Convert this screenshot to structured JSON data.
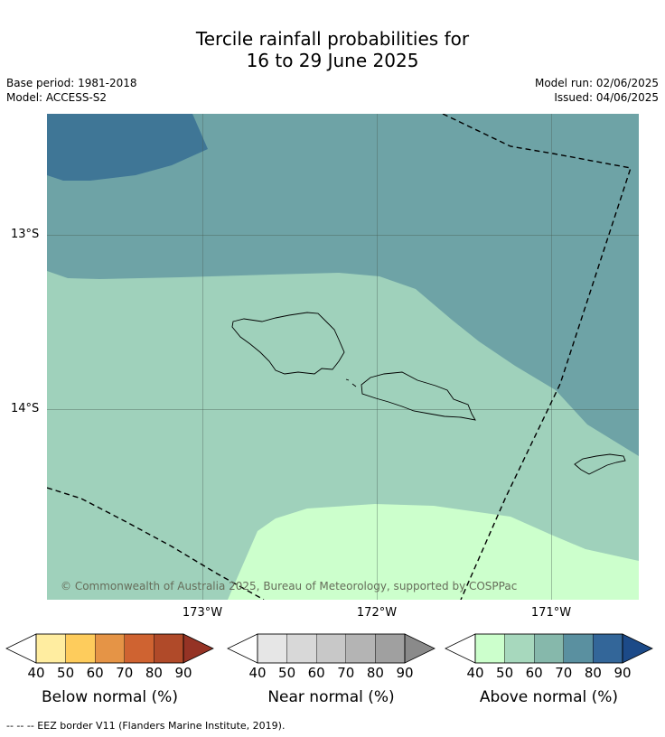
{
  "title_line1": "Tercile rainfall probabilities for",
  "title_line2": "16 to 29 June 2025",
  "base_period": "Base period: 1981-2018",
  "model": "Model: ACCESS-S2",
  "model_run": "Model run: 02/06/2025",
  "issued": "Issued: 04/06/2025",
  "lat_labels": [
    "13°S",
    "14°S"
  ],
  "lon_labels": [
    "173°W",
    "172°W",
    "171°W"
  ],
  "credit": "© Commonwealth of Australia 2025, Bureau of Meteorology, supported by COSPPac",
  "footnote": "--  --  -- EEZ border V11 (Flanders Marine Institute, 2019).",
  "legends": [
    {
      "title": "Below normal (%)",
      "ticks": [
        "40",
        "50",
        "60",
        "70",
        "80",
        "90"
      ],
      "colors": [
        "#ffeda0",
        "#fecc5c",
        "#e59446",
        "#cf6331",
        "#b04a29",
        "#953325"
      ]
    },
    {
      "title": "Near normal (%)",
      "ticks": [
        "40",
        "50",
        "60",
        "70",
        "80",
        "90"
      ],
      "colors": [
        "#e6e6e6",
        "#d8d8d8",
        "#c8c8c8",
        "#b4b4b4",
        "#a0a0a0",
        "#8a8a8a"
      ]
    },
    {
      "title": "Above normal (%)",
      "ticks": [
        "40",
        "50",
        "60",
        "70",
        "80",
        "90"
      ],
      "colors": [
        "#ccffcc",
        "#a7d8bd",
        "#86b8ab",
        "#5a90a0",
        "#336699",
        "#1c4a88"
      ]
    }
  ],
  "colors": {
    "zone_40_50": "#ccffcc",
    "zone_50_60": "#9fd1bb",
    "zone_60_70": "#6ea3a6",
    "zone_70_80": "#3f7696"
  }
}
